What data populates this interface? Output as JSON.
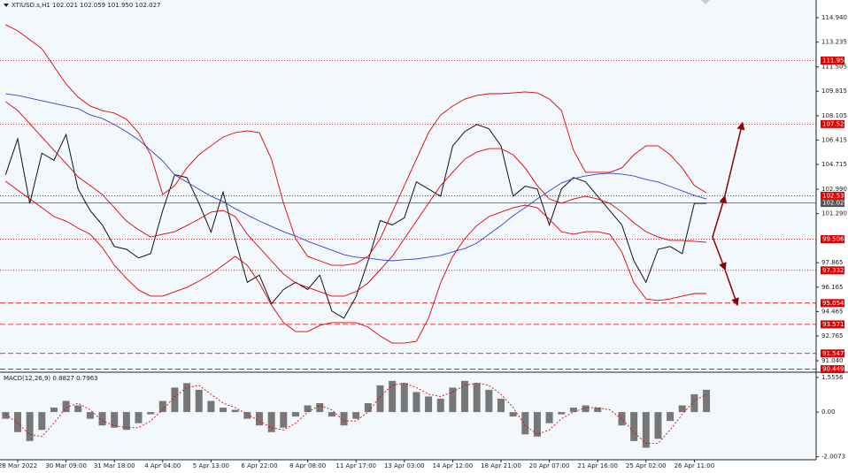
{
  "chart_data": {
    "type": "line",
    "title": "XTIUSD.s,H1  102.021 102.059 101.950 102.027",
    "categories": [
      null,
      "28 Mar 2022",
      null,
      null,
      null,
      "30 Mar 09:00",
      null,
      null,
      null,
      "31 Mar 18:00",
      null,
      null,
      null,
      "4 Apr 04:00",
      null,
      null,
      null,
      "5 Apr 13:00",
      null,
      null,
      null,
      "6 Apr 22:00",
      null,
      null,
      null,
      "8 Apr 08:00",
      null,
      null,
      null,
      "11 Apr 17:00",
      null,
      null,
      null,
      "13 Apr 03:00",
      null,
      null,
      null,
      "14 Apr 12:00",
      null,
      null,
      null,
      "18 Apr 21:00",
      null,
      null,
      null,
      "20 Apr 07:00",
      null,
      null,
      null,
      "21 Apr 16:00",
      null,
      null,
      null,
      "25 Apr 02:00",
      null,
      null,
      null,
      "26 Apr 11:00",
      null
    ],
    "series": [
      {
        "color": "#111111",
        "values": [
          104.0,
          106.5,
          102.0,
          105.5,
          105.0,
          106.8,
          103.0,
          101.5,
          100.5,
          99.0,
          98.8,
          98.2,
          98.5,
          101.5,
          104.0,
          103.8,
          102.0,
          100.0,
          102.8,
          99.5,
          96.5,
          97.0,
          95.0,
          96.0,
          96.5,
          96.0,
          97.0,
          94.5,
          94.0,
          95.5,
          98.0,
          100.8,
          100.5,
          101.0,
          103.5,
          103.0,
          102.5,
          106.0,
          107.0,
          107.5,
          107.2,
          106.0,
          102.5,
          103.2,
          103.0,
          100.5,
          103.0,
          103.8,
          103.5,
          102.5,
          101.5,
          100.5,
          98.0,
          96.5,
          98.8,
          99.0,
          98.5,
          102.0,
          102.0
        ]
      },
      {
        "color": "#e00000",
        "values": [
          114.45,
          114.02,
          113.4,
          112.78,
          111.55,
          110.32,
          109.4,
          108.78,
          108.47,
          108.29,
          107.86,
          106.93,
          105.39,
          102.62,
          103.24,
          104.47,
          105.39,
          106.01,
          106.62,
          106.93,
          107.06,
          106.93,
          105.08,
          102.01,
          99.54,
          98.31,
          98.0,
          97.69,
          97.69,
          97.82,
          98.31,
          99.54,
          101.39,
          103.24,
          105.08,
          106.93,
          108.16,
          108.78,
          109.27,
          109.52,
          109.64,
          109.64,
          109.7,
          109.77,
          109.7,
          109.27,
          108.47,
          105.7,
          104.16,
          104.16,
          104.16,
          104.47,
          105.39,
          106.01,
          106.01,
          105.39,
          104.47,
          103.24,
          102.74
        ]
      },
      {
        "color": "#e00000",
        "values": [
          109.09,
          108.47,
          107.55,
          106.62,
          105.7,
          104.78,
          103.85,
          103.24,
          102.62,
          101.7,
          100.77,
          100.16,
          99.66,
          99.85,
          100.03,
          100.46,
          100.9,
          101.39,
          101.51,
          101.08,
          99.85,
          98.93,
          98.0,
          97.08,
          96.46,
          96.15,
          95.85,
          95.54,
          95.54,
          95.85,
          96.46,
          97.38,
          98.31,
          99.54,
          100.77,
          102.01,
          103.24,
          104.16,
          105.08,
          105.58,
          105.82,
          105.82,
          105.39,
          104.47,
          103.24,
          102.31,
          102.01,
          102.31,
          102.5,
          102.31,
          102.01,
          101.39,
          100.65,
          100.03,
          99.66,
          99.42,
          99.42,
          99.36,
          99.29
        ]
      },
      {
        "color": "#e00000",
        "values": [
          103.54,
          102.93,
          102.31,
          101.7,
          101.08,
          100.77,
          100.28,
          99.85,
          98.93,
          97.69,
          96.77,
          95.97,
          95.54,
          95.54,
          95.85,
          96.15,
          96.58,
          97.08,
          97.69,
          98.31,
          97.69,
          96.46,
          94.92,
          93.69,
          93.07,
          93.07,
          93.5,
          93.69,
          93.69,
          93.69,
          93.38,
          92.76,
          92.27,
          92.27,
          92.39,
          94.0,
          96.46,
          98.31,
          99.54,
          100.46,
          101.08,
          101.39,
          101.7,
          101.88,
          101.7,
          100.9,
          100.03,
          99.85,
          100.03,
          100.03,
          99.85,
          98.62,
          96.46,
          95.35,
          95.23,
          95.35,
          95.54,
          95.72,
          95.72
        ]
      },
      {
        "color": "#3344cc",
        "values": [
          109.64,
          109.52,
          109.34,
          109.15,
          108.97,
          108.78,
          108.6,
          108.16,
          107.92,
          107.49,
          106.99,
          106.44,
          105.7,
          104.96,
          103.98,
          103.49,
          102.99,
          102.5,
          102.13,
          101.63,
          101.2,
          100.77,
          100.4,
          100.03,
          99.73,
          99.36,
          99.05,
          98.74,
          98.43,
          98.25,
          98.19,
          98.07,
          98.0,
          98.07,
          98.13,
          98.25,
          98.37,
          98.62,
          98.86,
          99.23,
          99.85,
          100.46,
          101.14,
          101.7,
          102.31,
          102.87,
          103.42,
          103.73,
          103.91,
          104.04,
          104.1,
          104.04,
          103.91,
          103.67,
          103.49,
          103.18,
          102.87,
          102.56,
          102.31
        ]
      }
    ],
    "ylim": [
      90.3,
      116.17
    ],
    "yticks": [
      {
        "value": 114.94,
        "label": "114.940"
      },
      {
        "value": 113.235,
        "label": "113.235"
      },
      {
        "value": 111.505,
        "label": "111.505"
      },
      {
        "value": 109.815,
        "label": "109.815"
      },
      {
        "value": 108.105,
        "label": "108.105"
      },
      {
        "value": 106.415,
        "label": "106.415"
      },
      {
        "value": 104.715,
        "label": "104.715"
      },
      {
        "value": 102.99,
        "label": "102.990"
      },
      {
        "value": 101.29,
        "label": "101.290"
      },
      {
        "value": 97.865,
        "label": "97.865"
      },
      {
        "value": 96.165,
        "label": "96.165"
      },
      {
        "value": 94.465,
        "label": "94.465"
      },
      {
        "value": 92.765,
        "label": "92.765"
      },
      {
        "value": 91.04,
        "label": "91.040"
      }
    ],
    "levels": [
      {
        "value": 111.95,
        "label": "111.950",
        "color": "#e00000",
        "style": "dotted"
      },
      {
        "value": 107.525,
        "label": "107.525",
        "color": "#e00000",
        "style": "dotted"
      },
      {
        "value": 102.531,
        "label": "102.531",
        "color": "#e00000",
        "style": "dotted"
      },
      {
        "value": 102.027,
        "label": "102.027",
        "color": "#555555",
        "style": "solid"
      },
      {
        "value": 99.506,
        "label": "99.506",
        "color": "#e00000",
        "style": "dotted"
      },
      {
        "value": 97.332,
        "label": "97.332",
        "color": "#e00000",
        "style": "dotted"
      },
      {
        "value": 95.054,
        "label": "95.054",
        "color": "#e00000",
        "style": "dashed"
      },
      {
        "value": 93.571,
        "label": "93.571",
        "color": "#e00000",
        "style": "dashed"
      },
      {
        "value": 91.547,
        "label": "91.547",
        "color": "#e00000",
        "style": "dashed"
      },
      {
        "value": 90.449,
        "label": "90.449",
        "color": "#e00000",
        "style": "dashed"
      }
    ],
    "macd": {
      "title": "MACD(12,26,9) 0.8827 0.7963",
      "histogram": {
        "color": "#777777",
        "values": [
          -0.3,
          -0.9,
          -1.3,
          -0.8,
          0.2,
          0.5,
          0.3,
          -0.3,
          -0.6,
          -0.7,
          -0.8,
          -0.5,
          -0.1,
          0.5,
          1.1,
          1.3,
          1.0,
          0.5,
          0.2,
          0.1,
          -0.3,
          -0.6,
          -0.9,
          -0.7,
          -0.2,
          0.3,
          0.4,
          -0.2,
          -0.6,
          -0.3,
          0.4,
          1.2,
          1.4,
          1.3,
          0.9,
          0.7,
          0.6,
          1.1,
          1.4,
          1.3,
          1.0,
          0.6,
          -0.2,
          -1.0,
          -1.1,
          -0.5,
          -0.1,
          0.2,
          0.3,
          0.2,
          0.0,
          -0.6,
          -1.3,
          -1.6,
          -1.2,
          -0.4,
          0.3,
          0.8,
          1.0
        ]
      },
      "signal": {
        "color": "#e00000",
        "values": [
          -0.1,
          -0.5,
          -1.0,
          -1.1,
          -0.5,
          0.2,
          0.4,
          0.1,
          -0.4,
          -0.6,
          -0.7,
          -0.7,
          -0.4,
          0.1,
          0.7,
          1.1,
          1.2,
          0.8,
          0.4,
          0.2,
          -0.1,
          -0.4,
          -0.7,
          -0.8,
          -0.5,
          0.0,
          0.3,
          0.1,
          -0.4,
          -0.4,
          0.0,
          0.7,
          1.2,
          1.3,
          1.1,
          0.8,
          0.7,
          0.9,
          1.2,
          1.3,
          1.2,
          0.8,
          0.2,
          -0.6,
          -1.0,
          -0.8,
          -0.3,
          0.0,
          0.2,
          0.2,
          0.1,
          -0.3,
          -0.9,
          -1.4,
          -1.4,
          -0.8,
          -0.1,
          0.5,
          0.8
        ]
      },
      "ylim": [
        -2.14,
        1.75
      ],
      "yticks": [
        1.5556,
        {
          "value": 0,
          "label": "0.00"
        },
        -2.0073
      ]
    }
  }
}
